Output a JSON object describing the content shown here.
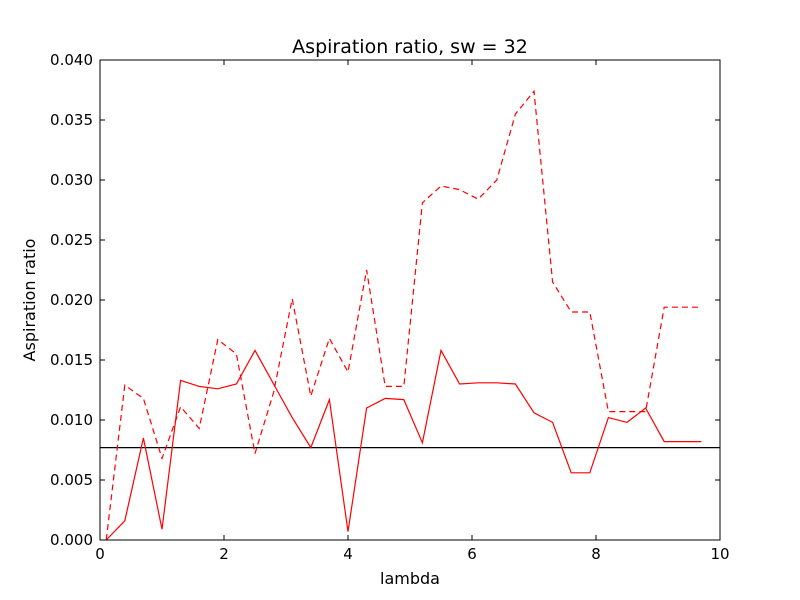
{
  "chart_data": {
    "type": "line",
    "title": "Aspiration ratio, sw = 32",
    "xlabel": "lambda",
    "ylabel": "Aspiration ratio",
    "xlim": [
      0,
      10
    ],
    "ylim": [
      0,
      0.04
    ],
    "xticks": [
      "0",
      "2",
      "4",
      "6",
      "8",
      "10"
    ],
    "yticks": [
      "0.000",
      "0.005",
      "0.010",
      "0.015",
      "0.020",
      "0.025",
      "0.030",
      "0.035",
      "0.040"
    ],
    "grid": false,
    "colors": {
      "series": "#ff0000",
      "reference": "#000000"
    },
    "x": [
      0.1,
      0.4,
      0.7,
      1.0,
      1.3,
      1.6,
      1.9,
      2.2,
      2.5,
      2.8,
      3.1,
      3.4,
      3.7,
      4.0,
      4.3,
      4.6,
      4.9,
      5.2,
      5.5,
      5.8,
      6.1,
      6.4,
      6.7,
      7.0,
      7.3,
      7.6,
      7.9,
      8.2,
      8.5,
      8.8,
      9.1,
      9.4,
      9.7
    ],
    "series": [
      {
        "style": "dashed",
        "values": [
          0.0,
          0.0129,
          0.0118,
          0.0068,
          0.0111,
          0.0093,
          0.0167,
          0.0155,
          0.0072,
          0.0123,
          0.0201,
          0.012,
          0.0168,
          0.014,
          0.0225,
          0.0128,
          0.0128,
          0.0281,
          0.0295,
          0.0292,
          0.0284,
          0.03,
          0.0355,
          0.0374,
          0.0215,
          0.019,
          0.019,
          0.0107,
          0.0107,
          0.0107,
          0.0194,
          0.0194,
          0.0194
        ]
      },
      {
        "style": "solid",
        "values": [
          0.0,
          0.0016,
          0.0085,
          0.0009,
          0.0133,
          0.0128,
          0.0126,
          0.013,
          0.0158,
          0.013,
          0.0102,
          0.0077,
          0.0117,
          0.0007,
          0.011,
          0.0118,
          0.0117,
          0.0081,
          0.0158,
          0.013,
          0.0131,
          0.0131,
          0.013,
          0.0106,
          0.0098,
          0.0056,
          0.0056,
          0.0102,
          0.0098,
          0.011,
          0.0082,
          0.0082,
          0.0082
        ]
      }
    ],
    "reference_lines": [
      {
        "orientation": "horizontal",
        "y": 0.0077,
        "color": "#000000",
        "style": "solid"
      }
    ]
  }
}
